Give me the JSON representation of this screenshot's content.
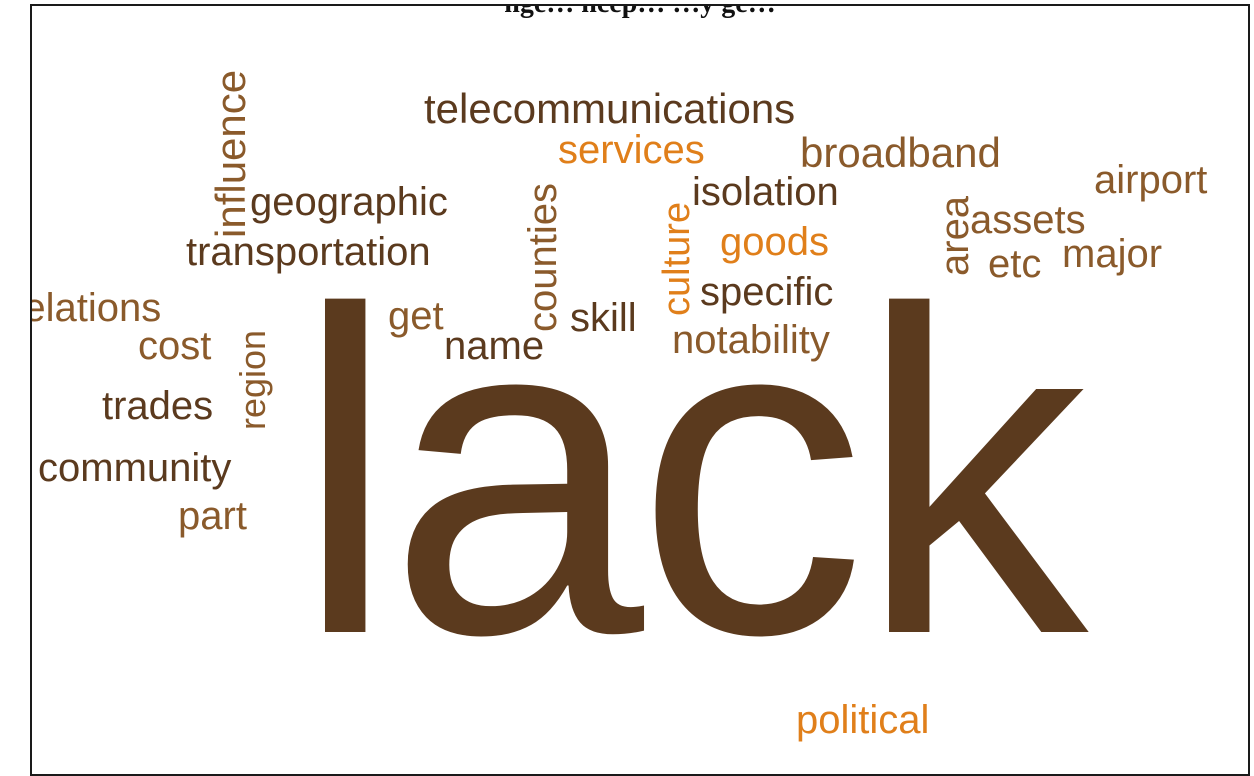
{
  "figure": {
    "title": "nge… ncep… …y ge…"
  },
  "colors": {
    "dark_brown": "#5b3a1e",
    "medium_brown": "#8a5a2b",
    "orange": "#e07f1a"
  },
  "words": {
    "lack": "lack",
    "telecommunications": "telecommunications",
    "services": "services",
    "broadband": "broadband",
    "airport": "airport",
    "influence": "influence",
    "geographic": "geographic",
    "counties": "counties",
    "culture": "culture",
    "isolation": "isolation",
    "goods": "goods",
    "area": "area",
    "assets": "assets",
    "etc": "etc",
    "major": "major",
    "transportation": "transportation",
    "relations": "relations",
    "get": "get",
    "skill": "skill",
    "specific": "specific",
    "cost": "cost",
    "region": "region",
    "name": "name",
    "notability": "notability",
    "trades": "trades",
    "community": "community",
    "part": "part",
    "political": "political"
  }
}
